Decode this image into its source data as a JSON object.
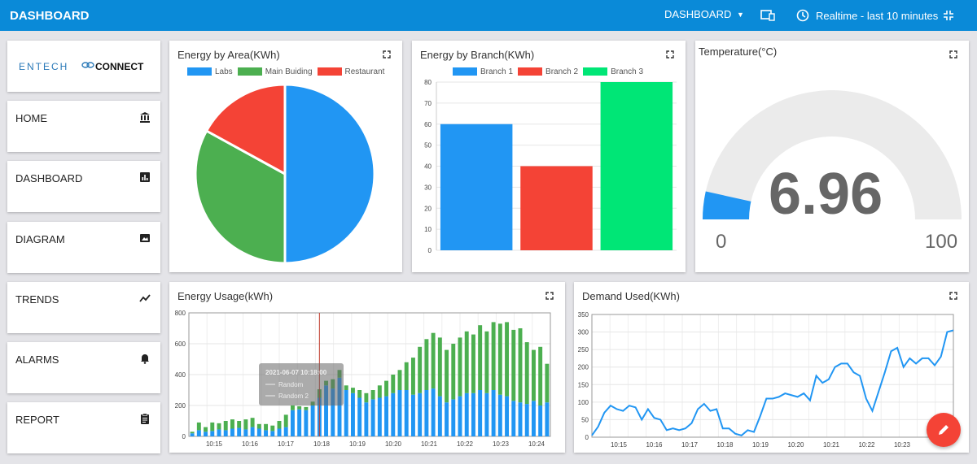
{
  "header": {
    "title": "DASHBOARD",
    "dashboard_select": "DASHBOARD",
    "time_range": "Realtime - last 10 minutes",
    "bg": "#0a8ad8",
    "icons": [
      "dropdown-caret-icon",
      "devices-icon",
      "clock-icon",
      "fullscreen-exit-icon"
    ]
  },
  "logo": {
    "brand": "ENTECH",
    "brand2": "CONNECT"
  },
  "sidebar": {
    "items": [
      {
        "label": "HOME",
        "icon": "bank-icon"
      },
      {
        "label": "DASHBOARD",
        "icon": "bar-chart-icon"
      },
      {
        "label": "DIAGRAM",
        "icon": "picture-icon"
      },
      {
        "label": "TRENDS",
        "icon": "trend-icon"
      },
      {
        "label": "ALARMS",
        "icon": "bell-icon"
      },
      {
        "label": "REPORT",
        "icon": "clipboard-icon"
      }
    ]
  },
  "panels": {
    "area": {
      "title": "Energy by Area(KWh)"
    },
    "branch": {
      "title": "Energy by Branch(KWh)"
    },
    "temp": {
      "title": "Temperature(°C)",
      "value": "6.96",
      "min": "0",
      "max": "100"
    },
    "usage": {
      "title": "Energy Usage(kWh)"
    },
    "demand": {
      "title": "Demand Used(KWh)"
    }
  },
  "tooltip": {
    "date": "2021-06-07 10:18:00",
    "s1": "Random",
    "s2": "Random 2"
  },
  "colors": {
    "blue": "#2196f3",
    "green": "#4caf50",
    "red": "#f44336",
    "bright_green": "#00e676",
    "fab": "#f44336"
  },
  "chart_data": [
    {
      "type": "pie",
      "title": "Energy by Area(KWh)",
      "categories": [
        "Labs",
        "Main Buiding",
        "Restaurant"
      ],
      "values": [
        50,
        33,
        17
      ],
      "colors": [
        "#2196f3",
        "#4caf50",
        "#f44336"
      ],
      "legend": "top"
    },
    {
      "type": "bar",
      "title": "Energy by Branch(KWh)",
      "categories": [
        "Branch 1",
        "Branch 2",
        "Branch 3"
      ],
      "values": [
        60,
        40,
        80
      ],
      "colors": [
        "#2196f3",
        "#f44336",
        "#00e676"
      ],
      "ylim": [
        0,
        80
      ],
      "yticks": [
        0,
        10,
        20,
        30,
        40,
        50,
        60,
        70,
        80
      ],
      "legend": "top"
    },
    {
      "type": "bar",
      "title": "Energy Usage(kWh)",
      "stacked": true,
      "ylim": [
        0,
        800
      ],
      "yticks": [
        0,
        200,
        400,
        600,
        800
      ],
      "xticks": [
        "10:15",
        "10:16",
        "10:17",
        "10:18",
        "10:19",
        "10:20",
        "10:21",
        "10:22",
        "10:23",
        "10:24"
      ],
      "series": [
        {
          "name": "Random",
          "color": "#2196f3",
          "values": [
            20,
            40,
            30,
            35,
            45,
            40,
            50,
            55,
            45,
            60,
            50,
            40,
            35,
            50,
            60,
            170,
            175,
            170,
            200,
            250,
            330,
            310,
            380,
            300,
            280,
            250,
            220,
            240,
            250,
            260,
            280,
            300,
            300,
            270,
            280,
            300,
            310,
            260,
            220,
            240,
            260,
            280,
            280,
            300,
            280,
            300,
            270,
            260,
            230,
            220,
            210,
            230,
            200,
            220
          ]
        },
        {
          "name": "Random 2",
          "color": "#4caf50",
          "values": [
            10,
            50,
            30,
            55,
            40,
            60,
            60,
            45,
            65,
            60,
            30,
            40,
            35,
            50,
            80,
            30,
            20,
            20,
            25,
            55,
            30,
            60,
            50,
            30,
            35,
            50,
            60,
            60,
            80,
            100,
            120,
            130,
            180,
            240,
            300,
            330,
            360,
            380,
            340,
            360,
            380,
            400,
            380,
            420,
            400,
            440,
            460,
            480,
            460,
            480,
            400,
            330,
            380,
            250
          ]
        }
      ],
      "grid": true
    },
    {
      "type": "line",
      "title": "Demand Used(KWh)",
      "ylim": [
        0,
        350
      ],
      "yticks": [
        0,
        50,
        100,
        150,
        200,
        250,
        300,
        350
      ],
      "xticks": [
        "10:15",
        "10:16",
        "10:17",
        "10:18",
        "10:19",
        "10:20",
        "10:21",
        "10:22",
        "10:23"
      ],
      "series": [
        {
          "name": "",
          "color": "#2196f3",
          "values": [
            5,
            30,
            70,
            90,
            80,
            75,
            90,
            85,
            50,
            80,
            55,
            50,
            20,
            25,
            20,
            25,
            40,
            80,
            95,
            75,
            80,
            25,
            25,
            10,
            5,
            20,
            15,
            60,
            110,
            110,
            115,
            125,
            120,
            115,
            125,
            105,
            175,
            155,
            165,
            200,
            210,
            210,
            185,
            175,
            110,
            75,
            130,
            185,
            245,
            255,
            200,
            225,
            210,
            225,
            225,
            205,
            230,
            300,
            305
          ]
        }
      ],
      "grid": true
    }
  ]
}
